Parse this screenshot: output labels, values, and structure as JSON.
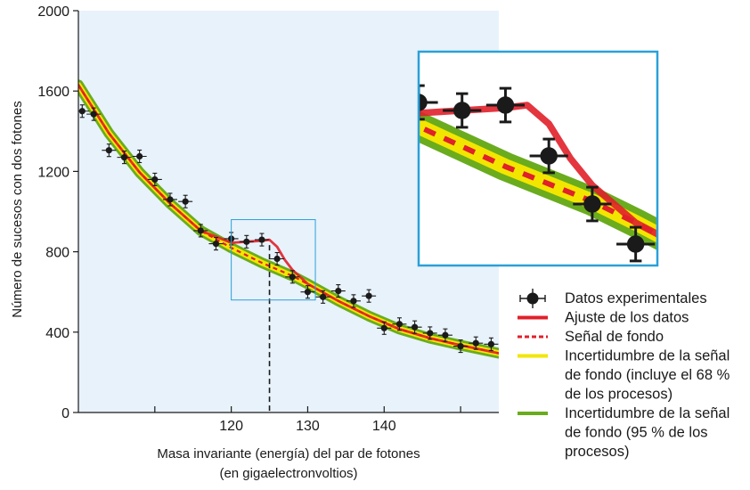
{
  "chart_data": {
    "type": "scatter",
    "ylabel": "Número de sucesos con dos fotones",
    "xlabel_lines": [
      "Masa invariante (energía) del par de fotones",
      "(en gigaelectronvoltios)"
    ],
    "xlim": [
      100,
      155
    ],
    "ylim": [
      0,
      2000
    ],
    "x_ticks": [
      110,
      120,
      130,
      140,
      150
    ],
    "x_tick_labels": [
      "",
      "120",
      "130",
      "140",
      ""
    ],
    "y_ticks": [
      0,
      400,
      800,
      1200,
      1600,
      2000
    ],
    "y_tick_labels": [
      "0",
      "400",
      "800",
      "1200",
      "1600",
      "2000"
    ],
    "plot_background": "#e8f2fb",
    "series": [
      {
        "name": "Datos experimentales",
        "kind": "points",
        "color": "#1a1a1a",
        "x": [
          100.5,
          102.0,
          104.0,
          106.0,
          108.0,
          110.0,
          112.0,
          114.0,
          116.0,
          118.0,
          120.0,
          122.0,
          124.0,
          126.0,
          128.0,
          130.0,
          132.0,
          134.0,
          136.0,
          138.0,
          140.0,
          142.0,
          144.0,
          146.0,
          148.0,
          150.0,
          152.0,
          154.0
        ],
        "y": [
          1500,
          1485,
          1305,
          1270,
          1275,
          1160,
          1060,
          1050,
          905,
          840,
          865,
          850,
          860,
          765,
          675,
          600,
          575,
          605,
          555,
          580,
          420,
          440,
          425,
          395,
          385,
          330,
          345,
          340
        ]
      },
      {
        "name": "Ajuste de los datos",
        "kind": "line",
        "color": "#e0202a",
        "x": [
          100,
          104,
          108,
          112,
          116,
          120,
          122,
          124,
          125,
          126,
          127,
          128,
          130,
          134,
          138,
          142,
          146,
          150,
          155
        ],
        "y": [
          1630,
          1390,
          1195,
          1040,
          905,
          845,
          850,
          855,
          860,
          825,
          760,
          710,
          640,
          555,
          480,
          415,
          370,
          335,
          295
        ]
      },
      {
        "name": "Señal de fondo",
        "kind": "dashed-line",
        "color": "#e0202a",
        "x": [
          100,
          104,
          108,
          112,
          116,
          120,
          124,
          128,
          130,
          134,
          138,
          142,
          146,
          150,
          155
        ],
        "y": [
          1630,
          1390,
          1195,
          1040,
          905,
          820,
          745,
          680,
          640,
          555,
          480,
          415,
          370,
          335,
          295
        ]
      },
      {
        "name": "Incertidumbre de la señal de fondo (incluye el 68 % de los procesos)",
        "kind": "band",
        "color": "#f2e600",
        "x": [
          100,
          104,
          108,
          112,
          116,
          120,
          124,
          128,
          130,
          134,
          138,
          142,
          146,
          150,
          155
        ],
        "y": [
          1630,
          1390,
          1195,
          1040,
          905,
          820,
          745,
          680,
          640,
          555,
          480,
          415,
          370,
          335,
          295
        ]
      },
      {
        "name": "Incertidumbre de la señal de fondo (95 % de los procesos)",
        "kind": "band",
        "color": "#6aac1e",
        "x": [
          100,
          104,
          108,
          112,
          116,
          120,
          124,
          128,
          130,
          134,
          138,
          142,
          146,
          150,
          155
        ],
        "y": [
          1630,
          1390,
          1195,
          1040,
          905,
          820,
          745,
          680,
          640,
          555,
          480,
          415,
          370,
          335,
          295
        ]
      }
    ],
    "marker_line_x": 125,
    "highlight_box": {
      "x": [
        120,
        131
      ],
      "y": [
        560,
        960
      ]
    },
    "inset": {
      "x_range": [
        120,
        131
      ],
      "y_range": [
        560,
        960
      ],
      "border_color": "#2aa0d8"
    },
    "legend": {
      "placement": "bottom-right",
      "entries": [
        {
          "lines": [
            "Datos experimentales"
          ],
          "symbol": "point",
          "color": "#1a1a1a"
        },
        {
          "lines": [
            "Ajuste de los datos"
          ],
          "symbol": "line",
          "color": "#e0202a"
        },
        {
          "lines": [
            "Señal de fondo"
          ],
          "symbol": "dashed",
          "color": "#e0202a"
        },
        {
          "lines": [
            "Incertidumbre de la señal",
            "de fondo (incluye el 68 %",
            "de los procesos)"
          ],
          "symbol": "line",
          "color": "#f2e600"
        },
        {
          "lines": [
            "Incertidumbre de la señal",
            "de fondo (95 % de los",
            "procesos)"
          ],
          "symbol": "line",
          "color": "#6aac1e"
        }
      ]
    }
  }
}
